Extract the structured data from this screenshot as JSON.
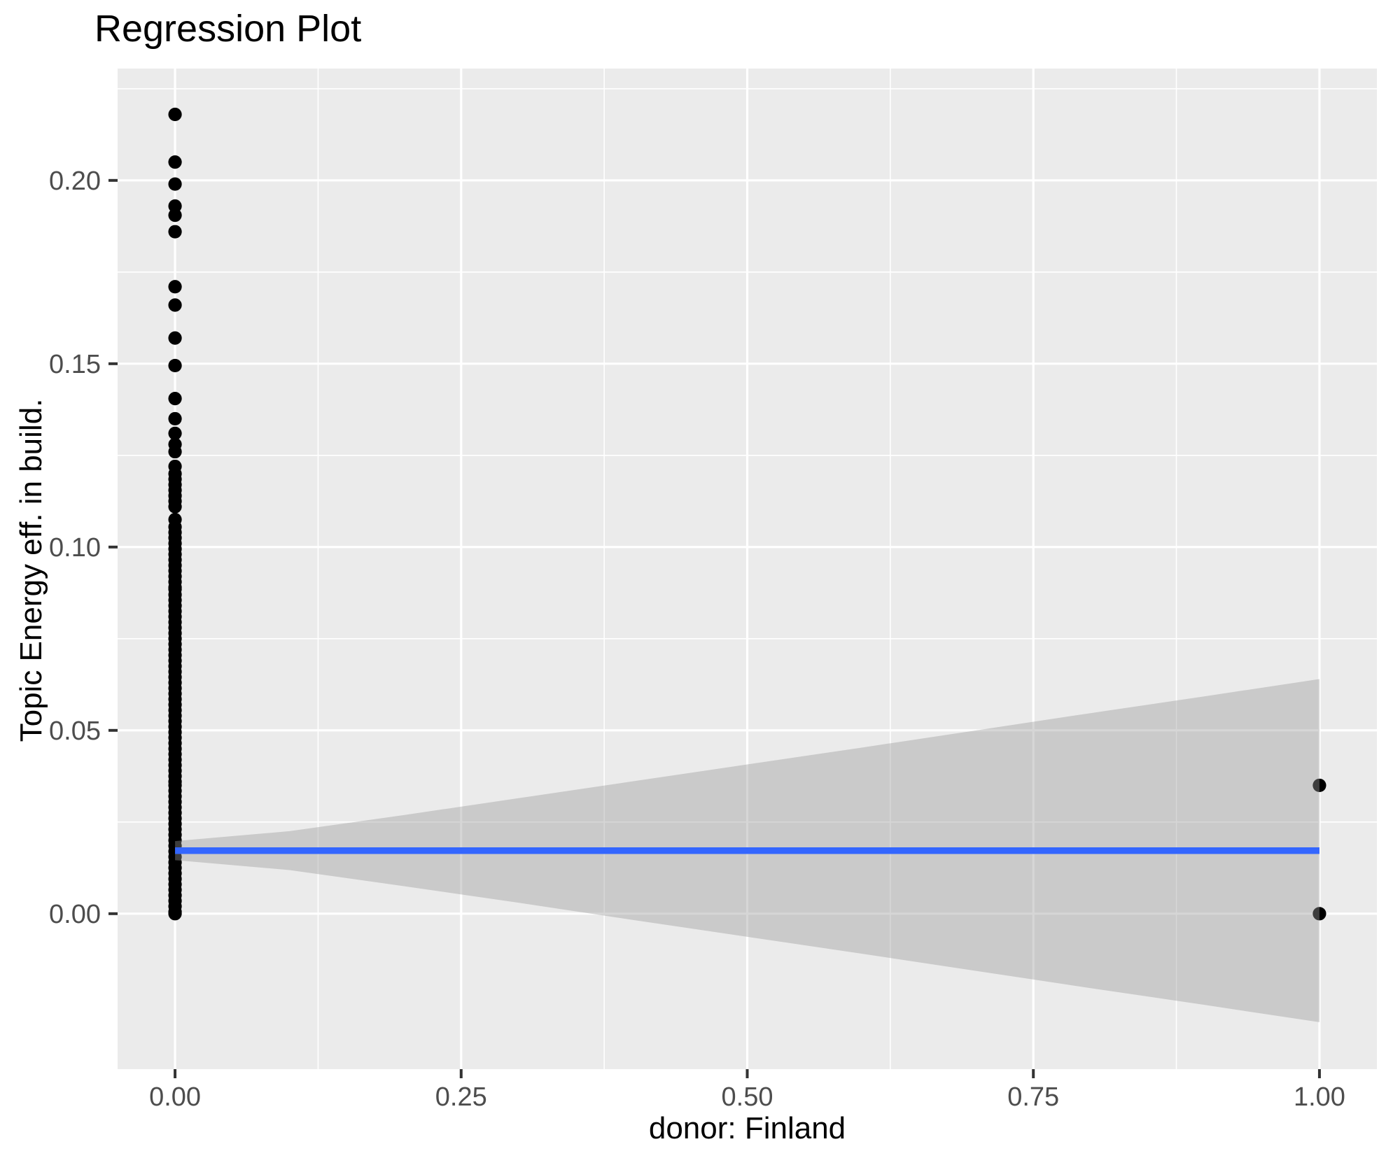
{
  "header": {
    "title": "Regression Plot"
  },
  "chart_data": {
    "type": "scatter",
    "title": "Regression Plot",
    "xlabel": "donor: Finland",
    "ylabel": "Topic Energy eff. in build.",
    "xlim": [
      -0.0502,
      1.0502
    ],
    "ylim": [
      -0.0424,
      0.2305
    ],
    "grid": "on",
    "legend": "none",
    "x_ticks": {
      "values": [
        0.0,
        0.25,
        0.5,
        0.75,
        1.0
      ],
      "labels": [
        "0.00",
        "0.25",
        "0.50",
        "0.75",
        "1.00"
      ]
    },
    "x_minor_ticks": [
      0.125,
      0.375,
      0.625,
      0.875
    ],
    "y_ticks": {
      "values": [
        0.0,
        0.05,
        0.1,
        0.15,
        0.2
      ],
      "labels": [
        "0.00",
        "0.05",
        "0.10",
        "0.15",
        "0.20"
      ]
    },
    "y_minor_ticks": [
      0.025,
      0.075,
      0.125,
      0.175,
      0.225
    ],
    "series": [
      {
        "name": "observations at donor=0",
        "x": 0.0,
        "y": [
          0.218,
          0.205,
          0.199,
          0.193,
          0.1905,
          0.186,
          0.171,
          0.166,
          0.157,
          0.1495,
          0.1405,
          0.135,
          0.131,
          0.128,
          0.126,
          0.122,
          0.12,
          0.1185,
          0.117,
          0.1155,
          0.114,
          0.1125,
          0.111,
          0.1075,
          0.1055,
          0.104,
          0.1025,
          0.101,
          0.0995,
          0.098,
          0.0965,
          0.095,
          0.0935,
          0.092,
          0.0905,
          0.089,
          0.0885,
          0.087,
          0.0855,
          0.084,
          0.0825,
          0.081,
          0.0795,
          0.078,
          0.0765,
          0.075,
          0.0735,
          0.072,
          0.0705,
          0.069,
          0.0675,
          0.066,
          0.0645,
          0.063,
          0.0615,
          0.06,
          0.0585,
          0.057,
          0.0555,
          0.054,
          0.0525,
          0.051,
          0.0495,
          0.048,
          0.0465,
          0.045,
          0.0435,
          0.042,
          0.0405,
          0.039,
          0.0375,
          0.036,
          0.035,
          0.0335,
          0.032,
          0.0305,
          0.029,
          0.0275,
          0.026,
          0.0245,
          0.023,
          0.0215,
          0.02,
          0.0185,
          0.017,
          0.0155,
          0.014,
          0.0125,
          0.011,
          0.0095,
          0.008,
          0.0065,
          0.005,
          0.0035,
          0.002,
          0.0005,
          0.0
        ]
      },
      {
        "name": "observations at donor=1",
        "x": 1.0,
        "y": [
          0.035,
          0.0
        ]
      }
    ],
    "regression_line": {
      "x": [
        0.0,
        1.0
      ],
      "y": [
        0.0172,
        0.0172
      ],
      "color": "#3366FF"
    },
    "confidence_band": {
      "x": [
        0.0,
        0.1,
        0.2,
        0.3,
        0.4,
        0.5,
        0.6,
        0.7,
        0.8,
        0.9,
        1.0
      ],
      "upper": [
        0.0198,
        0.0225,
        0.0269,
        0.0315,
        0.0361,
        0.0407,
        0.0453,
        0.05,
        0.0547,
        0.0593,
        0.064
      ],
      "lower": [
        0.0146,
        0.0119,
        0.0075,
        0.003,
        -0.0017,
        -0.0063,
        -0.0109,
        -0.0156,
        -0.0203,
        -0.0249,
        -0.0296
      ],
      "color": "#999999",
      "opacity": 0.4
    },
    "colors": {
      "panel_background": "#EBEBEB",
      "gridline": "#FFFFFF",
      "point": "#000000",
      "tick_mark": "#333333",
      "tick_label": "#4D4D4D",
      "title_text": "#000000"
    },
    "point_radius": 9.6
  }
}
